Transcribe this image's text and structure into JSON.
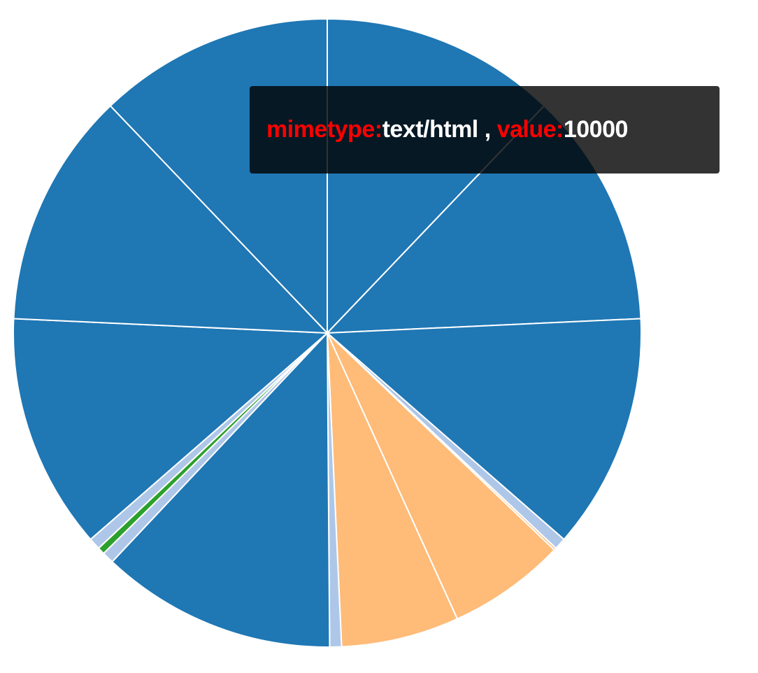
{
  "chart_data": {
    "type": "pie",
    "start_angle_deg": 0,
    "direction": "clockwise",
    "slices": [
      {
        "value": 10000,
        "color": "#1f77b4"
      },
      {
        "value": 10000,
        "color": "#1f77b4"
      },
      {
        "value": 10000,
        "color": "#1f77b4"
      },
      {
        "value": 500,
        "color": "#aec7e8"
      },
      {
        "value": 100,
        "color": "#ffbb78"
      },
      {
        "value": 5000,
        "color": "#ffbb78"
      },
      {
        "value": 5000,
        "color": "#ffbb78"
      },
      {
        "value": 500,
        "color": "#aec7e8"
      },
      {
        "value": 10000,
        "color": "#1f77b4"
      },
      {
        "value": 500,
        "color": "#aec7e8"
      },
      {
        "value": 300,
        "color": "#2ca02c"
      },
      {
        "value": 500,
        "color": "#aec7e8"
      },
      {
        "value": 10000,
        "color": "#1f77b4"
      },
      {
        "value": 10000,
        "color": "#1f77b4"
      },
      {
        "value": 10000,
        "color": "#1f77b4"
      }
    ],
    "slice_stroke": "#ffffff"
  },
  "tooltip": {
    "key1": "mimetype:",
    "val1": "text/html",
    "sep": " , ",
    "key2": "value:",
    "val2": "10000",
    "key_color": "#ff0000",
    "value_color": "#ffffff",
    "background": "rgba(0,0,0,0.8)"
  }
}
